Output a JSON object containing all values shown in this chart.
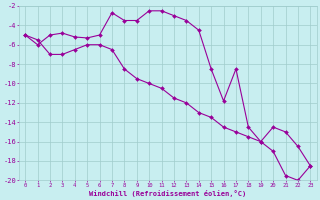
{
  "xlabel": "Windchill (Refroidissement éolien,°C)",
  "line1": {
    "x": [
      0,
      1,
      2,
      3,
      4,
      5,
      6,
      7,
      8,
      9,
      10,
      11,
      12,
      13,
      14,
      15,
      16,
      17,
      18,
      19,
      20,
      21,
      22,
      23
    ],
    "y": [
      -5,
      -6,
      -5,
      -4.8,
      -5.2,
      -5.3,
      -5,
      -2.7,
      -3.5,
      -3.5,
      -2.5,
      -2.5,
      -3,
      -3.5,
      -4.5,
      -8.5,
      -11.8,
      -8.5,
      -14.5,
      -16,
      -17,
      -19.5,
      -20,
      -18.5
    ]
  },
  "line2": {
    "x": [
      0,
      1,
      2,
      3,
      4,
      5,
      6,
      7,
      8,
      9,
      10,
      11,
      12,
      13,
      14,
      15,
      16,
      17,
      18,
      19,
      20,
      21,
      22,
      23
    ],
    "y": [
      -5,
      -5.5,
      -7,
      -7,
      -6.5,
      -6,
      -6,
      -6.5,
      -8.5,
      -9.5,
      -10,
      -10.5,
      -11.5,
      -12,
      -13,
      -13.5,
      -14.5,
      -15,
      -15.5,
      -16,
      -14.5,
      -15,
      -16.5,
      -18.5
    ]
  },
  "color": "#990099",
  "bg_color": "#c8eef0",
  "grid_color": "#a0cccc",
  "ylim": [
    -20,
    -2
  ],
  "xlim": [
    -0.5,
    23.5
  ],
  "yticks": [
    -2,
    -4,
    -6,
    -8,
    -10,
    -12,
    -14,
    -16,
    -18,
    -20
  ],
  "xticks": [
    0,
    1,
    2,
    3,
    4,
    5,
    6,
    7,
    8,
    9,
    10,
    11,
    12,
    13,
    14,
    15,
    16,
    17,
    18,
    19,
    20,
    21,
    22,
    23
  ]
}
